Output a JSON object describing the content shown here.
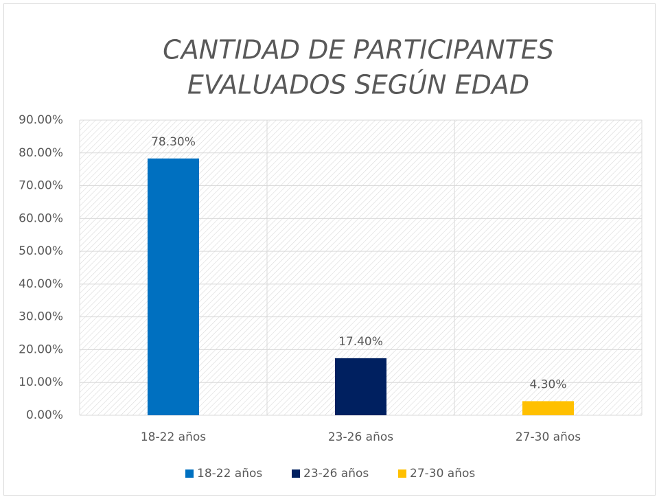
{
  "chart_data": {
    "type": "bar",
    "title": [
      "CANTIDAD DE PARTICIPANTES",
      "EVALUADOS SEGÚN EDAD"
    ],
    "categories": [
      "18-22 años",
      "23-26 años",
      "27-30 años"
    ],
    "values": [
      78.3,
      17.4,
      4.3
    ],
    "value_labels": [
      "78.30%",
      "17.40%",
      "4.30%"
    ],
    "colors": [
      "#0070c0",
      "#002060",
      "#ffc000"
    ],
    "ylim": [
      0,
      90
    ],
    "yticks": [
      {
        "value": 0,
        "label": "0.00%"
      },
      {
        "value": 10,
        "label": "10.00%"
      },
      {
        "value": 20,
        "label": "20.00%"
      },
      {
        "value": 30,
        "label": "30.00%"
      },
      {
        "value": 40,
        "label": "40.00%"
      },
      {
        "value": 50,
        "label": "50.00%"
      },
      {
        "value": 60,
        "label": "60.00%"
      },
      {
        "value": 70,
        "label": "70.00%"
      },
      {
        "value": 80,
        "label": "80.00%"
      },
      {
        "value": 90,
        "label": "90.00%"
      }
    ],
    "grid": true,
    "legend": "bottom"
  }
}
